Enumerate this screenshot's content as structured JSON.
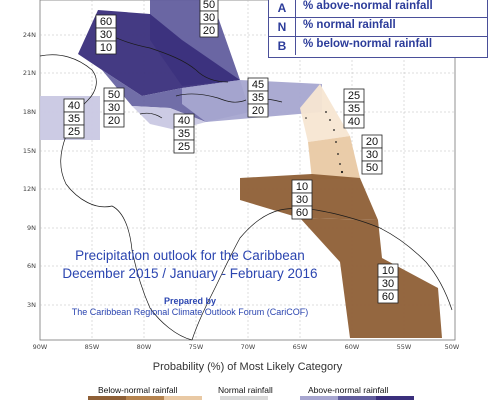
{
  "legend": {
    "items": [
      {
        "key": "A",
        "label": "% above-normal rainfall"
      },
      {
        "key": "N",
        "label": "% normal rainfall"
      },
      {
        "key": "B",
        "label": "% below-normal rainfall"
      }
    ]
  },
  "title": {
    "line1": "Precipitation outlook for the Caribbean",
    "line2": "December 2015 / January - February 2016",
    "prepared_by": "Prepared by",
    "forum": "The Caribbean Regional Climate Outlook Forum (CariCOF)"
  },
  "axes": {
    "lat_labels": [
      "24N",
      "21N",
      "18N",
      "15N",
      "12N",
      "9N",
      "6N",
      "3N"
    ],
    "lon_labels": [
      "90W",
      "85W",
      "80W",
      "75W",
      "70W",
      "65W",
      "60W",
      "55W",
      "50W"
    ]
  },
  "probability_title": "Probability (%) of Most Likely Category",
  "category_legend": {
    "below": "Below-normal rainfall",
    "normal": "Normal rainfall",
    "above": "Above-normal rainfall"
  },
  "colors": {
    "above_dark": "#3a2f7c",
    "above_medium": "#625e9e",
    "above_light": "#a7a6d0",
    "above_pale": "#c9c8e3",
    "below_dark": "#8e5f36",
    "below_medium": "#b6844f",
    "below_light": "#e9c9a4",
    "below_pale": "#f7e6d2"
  },
  "regions": [
    {
      "name": "bahamas-cuba",
      "values": [
        "60",
        "30",
        "10"
      ]
    },
    {
      "name": "north-top",
      "values": [
        "50",
        "30",
        "20"
      ]
    },
    {
      "name": "central-caribbean",
      "values": [
        "50",
        "30",
        "20"
      ]
    },
    {
      "name": "belize-honduras",
      "values": [
        "40",
        "35",
        "25"
      ]
    },
    {
      "name": "jamaica-south",
      "values": [
        "40",
        "35",
        "25"
      ]
    },
    {
      "name": "puerto-rico",
      "values": [
        "45",
        "35",
        "20"
      ]
    },
    {
      "name": "leeward-islands",
      "values": [
        "25",
        "35",
        "40"
      ]
    },
    {
      "name": "windward-islands",
      "values": [
        "20",
        "30",
        "50"
      ]
    },
    {
      "name": "trinidad-venezuela",
      "values": [
        "10",
        "30",
        "60"
      ]
    },
    {
      "name": "guianas",
      "values": [
        "10",
        "30",
        "60"
      ]
    }
  ]
}
